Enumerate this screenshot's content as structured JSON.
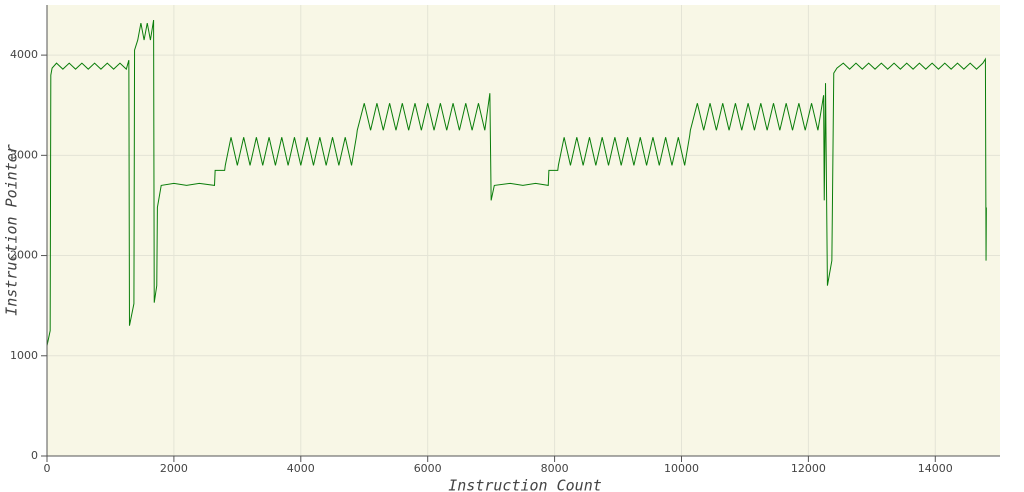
{
  "chart_data": {
    "type": "line",
    "x_label": "Instruction Count",
    "y_label": "Instruction Pointer",
    "color": "#0a7d0a",
    "grid": true,
    "xlim": [
      0,
      15020
    ],
    "ylim": [
      0,
      4500
    ],
    "xticks": [
      0,
      2000,
      4000,
      6000,
      8000,
      10000,
      12000,
      14000
    ],
    "yticks": [
      0,
      1000,
      2000,
      3000,
      4000
    ],
    "x": [
      0,
      50,
      60,
      80,
      150,
      250,
      350,
      450,
      550,
      650,
      750,
      850,
      950,
      1050,
      1150,
      1250,
      1290,
      1300,
      1370,
      1380,
      1430,
      1480,
      1530,
      1580,
      1630,
      1680,
      1690,
      1730,
      1740,
      1800,
      2000,
      2200,
      2400,
      2640,
      2650,
      2800,
      2810,
      2900,
      3000,
      3100,
      3200,
      3300,
      3400,
      3500,
      3600,
      3700,
      3800,
      3900,
      4000,
      4100,
      4200,
      4300,
      4400,
      4500,
      4600,
      4700,
      4800,
      4880,
      4890,
      5000,
      5100,
      5200,
      5300,
      5400,
      5500,
      5600,
      5700,
      5800,
      5900,
      6000,
      6100,
      6200,
      6300,
      6400,
      6500,
      6600,
      6700,
      6800,
      6900,
      6980,
      7000,
      7050,
      7300,
      7500,
      7700,
      7900,
      7910,
      8050,
      8060,
      8150,
      8250,
      8350,
      8450,
      8550,
      8650,
      8750,
      8850,
      8950,
      9050,
      9150,
      9250,
      9350,
      9450,
      9550,
      9650,
      9750,
      9850,
      9950,
      10050,
      10130,
      10140,
      10250,
      10350,
      10450,
      10550,
      10650,
      10750,
      10850,
      10950,
      11050,
      11150,
      11250,
      11350,
      11450,
      11550,
      11650,
      11750,
      11850,
      11950,
      12050,
      12150,
      12220,
      12240,
      12250,
      12270,
      12300,
      12370,
      12400,
      12450,
      12550,
      12650,
      12750,
      12850,
      12950,
      13050,
      13150,
      13250,
      13350,
      13450,
      13550,
      13650,
      13750,
      13850,
      13950,
      14050,
      14150,
      14250,
      14350,
      14450,
      14550,
      14650,
      14750,
      14790,
      14800,
      14805
    ],
    "values": [
      1100,
      1250,
      3800,
      3870,
      3920,
      3860,
      3920,
      3860,
      3920,
      3860,
      3920,
      3860,
      3920,
      3860,
      3920,
      3860,
      3950,
      1300,
      1520,
      4050,
      4150,
      4320,
      4150,
      4320,
      4150,
      4350,
      1530,
      1700,
      2480,
      2700,
      2720,
      2700,
      2720,
      2700,
      2850,
      2850,
      2900,
      3180,
      2900,
      3180,
      2900,
      3180,
      2900,
      3180,
      2900,
      3180,
      2900,
      3180,
      2900,
      3180,
      2900,
      3180,
      2900,
      3180,
      2900,
      3180,
      2900,
      3200,
      3250,
      3520,
      3250,
      3520,
      3250,
      3520,
      3250,
      3520,
      3250,
      3520,
      3250,
      3520,
      3250,
      3520,
      3250,
      3520,
      3250,
      3520,
      3250,
      3520,
      3250,
      3620,
      2550,
      2700,
      2720,
      2700,
      2720,
      2700,
      2850,
      2850,
      2900,
      3180,
      2900,
      3180,
      2900,
      3180,
      2900,
      3180,
      2900,
      3180,
      2900,
      3180,
      2900,
      3180,
      2900,
      3180,
      2900,
      3180,
      2900,
      3180,
      2900,
      3200,
      3250,
      3520,
      3250,
      3520,
      3250,
      3520,
      3250,
      3520,
      3250,
      3520,
      3250,
      3520,
      3250,
      3520,
      3250,
      3520,
      3250,
      3520,
      3250,
      3520,
      3250,
      3520,
      3600,
      2550,
      3720,
      1700,
      1950,
      3820,
      3870,
      3920,
      3860,
      3920,
      3860,
      3920,
      3860,
      3920,
      3860,
      3920,
      3860,
      3920,
      3860,
      3920,
      3860,
      3920,
      3860,
      3920,
      3860,
      3920,
      3860,
      3920,
      3860,
      3920,
      3960,
      1950,
      2480
    ]
  }
}
